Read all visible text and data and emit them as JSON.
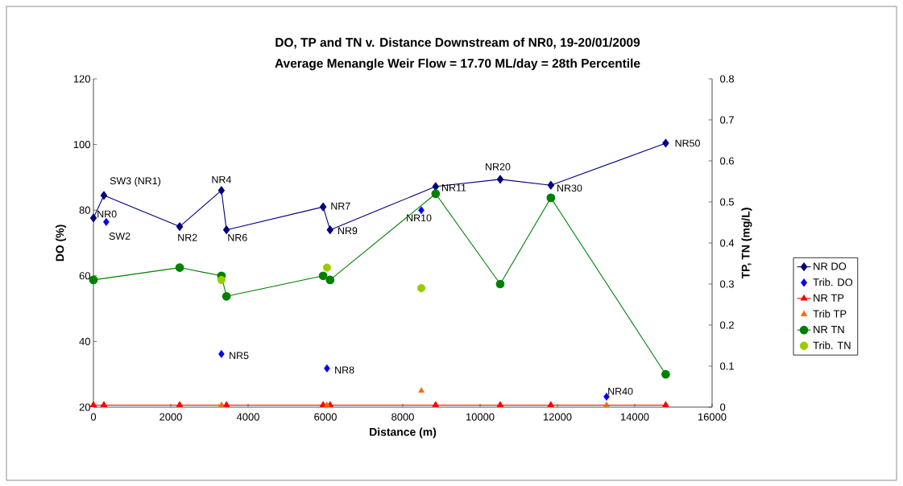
{
  "chart_data": {
    "type": "line",
    "title": "DO, TP and TN v. Distance Downstream of NR0, 19-20/01/2009",
    "subtitle": "Average Menangle Weir Flow = 17.70 ML/day = 28th Percentile",
    "xlabel": "Distance (m)",
    "ylabel": "DO (%)",
    "y2label": "TP, TN (mg/L)",
    "xlim": [
      0,
      16000
    ],
    "xticks": [
      0,
      2000,
      4000,
      6000,
      8000,
      10000,
      12000,
      14000,
      16000
    ],
    "ylim": [
      20,
      120
    ],
    "yticks": [
      20,
      40,
      60,
      80,
      100,
      120
    ],
    "y2lim": [
      0,
      0.8
    ],
    "y2ticks": [
      0,
      0.1,
      0.2,
      0.3,
      0.4,
      0.5,
      0.6,
      0.7,
      0.8
    ],
    "grid": false,
    "legend": "right",
    "series": [
      {
        "name": "NR DO",
        "marker": "diamond",
        "color": "#000080",
        "x": [
          0,
          270,
          2230,
          3310,
          3440,
          5940,
          6120,
          8850,
          10520,
          11830,
          14800
        ],
        "values": [
          77.6,
          84.5,
          75,
          86,
          74,
          81,
          74,
          87.2,
          89.4,
          87.6,
          100.4
        ]
      },
      {
        "name": "Trib. DO",
        "type": "scatter",
        "marker": "diamond",
        "color": "#0000ff",
        "x": [
          330,
          3310,
          6040,
          8480,
          13270
        ],
        "values": [
          76.4,
          36.2,
          31.8,
          80,
          23.2
        ]
      },
      {
        "name": "NR TP",
        "marker": "triangle",
        "color": "#ff0000",
        "axis": "y2",
        "x": [
          0,
          270,
          2230,
          3310,
          3440,
          5940,
          6120,
          8850,
          10520,
          11830,
          14800
        ],
        "values": [
          0.005,
          0.005,
          0.005,
          null,
          0.005,
          0.005,
          0.005,
          0.005,
          0.005,
          0.005,
          0.005
        ]
      },
      {
        "name": "Trib TP",
        "type": "scatter",
        "marker": "triangle",
        "color": "#ff6600",
        "axis": "y2",
        "x": [
          3310,
          6040,
          8480,
          13270
        ],
        "values": [
          0.005,
          0.005,
          0.04,
          0.005
        ]
      },
      {
        "name": "NR TN",
        "marker": "circle",
        "color": "#008000",
        "axis": "y2",
        "x": [
          0,
          2230,
          3310,
          3440,
          5940,
          6120,
          8850,
          10520,
          11830,
          14800
        ],
        "values": [
          0.31,
          0.34,
          0.32,
          0.27,
          0.32,
          0.31,
          0.52,
          0.3,
          0.51,
          0.08
        ]
      },
      {
        "name": "Trib. TN",
        "type": "scatter",
        "marker": "circle",
        "color": "#99cc00",
        "axis": "y2",
        "x": [
          3310,
          6040,
          8480
        ],
        "values": [
          0.31,
          0.34,
          0.29
        ]
      }
    ],
    "annotations": [
      {
        "text": "NR0",
        "x": 0,
        "y": 77.6
      },
      {
        "text": "SW3 (NR1)",
        "x": 270,
        "y": 84.5
      },
      {
        "text": "SW2",
        "x": 330,
        "y": 76.4
      },
      {
        "text": "NR2",
        "x": 2230,
        "y": 75
      },
      {
        "text": "NR4",
        "x": 3310,
        "y": 86
      },
      {
        "text": "NR6",
        "x": 3440,
        "y": 74
      },
      {
        "text": "NR7",
        "x": 5940,
        "y": 81
      },
      {
        "text": "NR9",
        "x": 6120,
        "y": 74
      },
      {
        "text": "NR10",
        "x": 8480,
        "y": 80
      },
      {
        "text": "NR11",
        "x": 8850,
        "y": 87.2
      },
      {
        "text": "NR20",
        "x": 10520,
        "y": 89.4
      },
      {
        "text": "NR30",
        "x": 11830,
        "y": 87.6
      },
      {
        "text": "NR50",
        "x": 14800,
        "y": 100.4
      },
      {
        "text": "NR5",
        "x": 3310,
        "y": 36.2
      },
      {
        "text": "NR8",
        "x": 6040,
        "y": 31.8
      },
      {
        "text": "NR40",
        "x": 13270,
        "y": 23.2
      }
    ]
  }
}
